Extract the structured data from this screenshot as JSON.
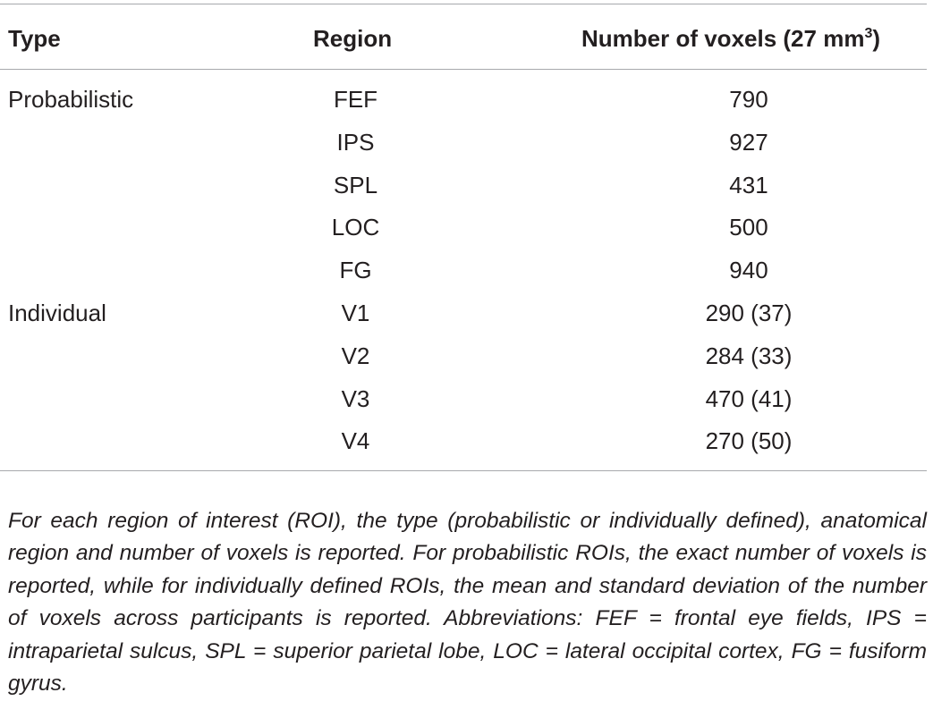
{
  "table": {
    "headers": {
      "type": "Type",
      "region": "Region",
      "voxels_main": "Number of voxels (27 mm",
      "voxels_sup": "3",
      "voxels_close": ")"
    },
    "rows": [
      {
        "type": "Probabilistic",
        "region": "FEF",
        "voxels": "790"
      },
      {
        "type": "",
        "region": "IPS",
        "voxels": "927"
      },
      {
        "type": "",
        "region": "SPL",
        "voxels": "431"
      },
      {
        "type": "",
        "region": "LOC",
        "voxels": "500"
      },
      {
        "type": "",
        "region": "FG",
        "voxels": "940"
      },
      {
        "type": "Individual",
        "region": "V1",
        "voxels": "290 (37)"
      },
      {
        "type": "",
        "region": "V2",
        "voxels": "284 (33)"
      },
      {
        "type": "",
        "region": "V3",
        "voxels": "470 (41)"
      },
      {
        "type": "",
        "region": "V4",
        "voxels": "270 (50)"
      }
    ],
    "footnote": "For each region of interest (ROI), the type (probabilistic or individually defined), anatomical region and number of voxels is reported. For probabilistic ROIs, the exact number of voxels is reported, while for individually defined ROIs, the mean and standard deviation of the number of voxels across participants is reported. Abbreviations: FEF = frontal eye fields, IPS = intraparietal sulcus, SPL = superior parietal lobe, LOC = lateral occipital cortex, FG = fusiform gyrus."
  }
}
